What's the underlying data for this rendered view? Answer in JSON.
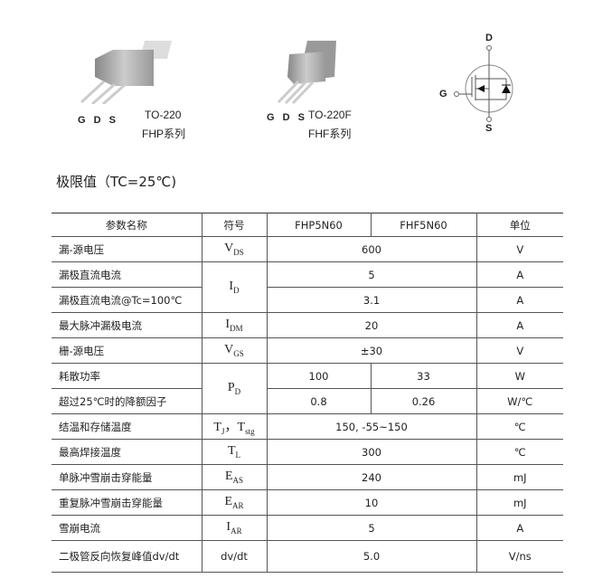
{
  "packages": [
    {
      "pins": "G D S",
      "name": "TO-220",
      "series": "FHP系列"
    },
    {
      "pins": "G D S",
      "name": "TO-220F",
      "series": "FHF系列"
    }
  ],
  "symbol": {
    "drain": "D",
    "gate": "G",
    "source": "S"
  },
  "section_title": "极限值（TC=25℃)",
  "table": {
    "headers": [
      "参数名称",
      "符号",
      "FHP5N60",
      "FHF5N60",
      "单位"
    ],
    "rows": [
      {
        "param": "漏-源电压",
        "sym": "V",
        "sub": "DS",
        "value": "600",
        "unit": "V"
      },
      {
        "param": "漏极直流电流",
        "sym": "I",
        "sub": "D",
        "value": "5",
        "unit": "A"
      },
      {
        "param": "漏极直流电流@Tc=100℃",
        "value": "3.1",
        "unit": "A"
      },
      {
        "param": "最大脉冲漏极电流",
        "sym": "I",
        "sub": "DM",
        "value": "20",
        "unit": "A"
      },
      {
        "param": "栅-源电压",
        "sym": "V",
        "sub": "GS",
        "value": "±30",
        "unit": "V"
      },
      {
        "param": "耗散功率",
        "sym": "P",
        "sub": "D",
        "value_fhp": "100",
        "value_fhf": "33",
        "unit": "W"
      },
      {
        "param": "超过25℃时的降额因子",
        "value_fhp": "0.8",
        "value_fhf": "0.26",
        "unit": "W/℃"
      },
      {
        "param": "结温和存储温度",
        "sym": "T",
        "sub": "J",
        "sym2": "，T",
        "sub2": "stg",
        "value": "150, -55~150",
        "unit": "℃"
      },
      {
        "param": "最高焊接温度",
        "sym": "T",
        "sub": "L",
        "value": "300",
        "unit": "℃"
      },
      {
        "param": "单脉冲雪崩击穿能量",
        "sym": "E",
        "sub": "AS",
        "value": "240",
        "unit": "mJ"
      },
      {
        "param": "重复脉冲雪崩击穿能量",
        "sym": "E",
        "sub": "AR",
        "value": "10",
        "unit": "mJ"
      },
      {
        "param": "雪崩电流",
        "sym": "I",
        "sub": "AR",
        "value": "5",
        "unit": "A"
      },
      {
        "param": "二极管反向恢复峰值dv/dt",
        "sym": "dv/dt",
        "value": "5.0",
        "unit": "V/ns"
      }
    ]
  }
}
